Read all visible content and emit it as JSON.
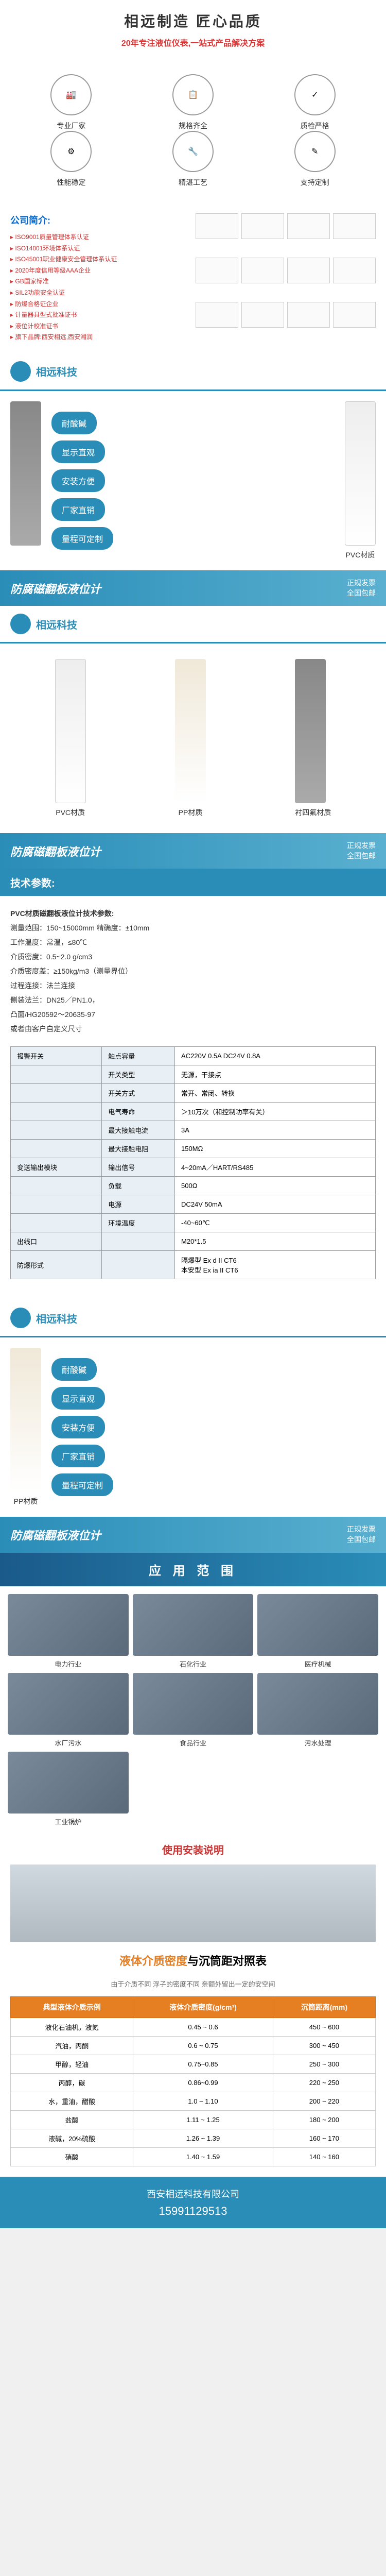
{
  "header": {
    "title": "相远制造  匠心品质",
    "subtitle": "20年专注液位仪表,一站式产品解决方案"
  },
  "features": [
    {
      "icon": "factory",
      "label": "专业厂家"
    },
    {
      "icon": "spec",
      "label": "规格齐全"
    },
    {
      "icon": "quality",
      "label": "质检严格"
    },
    {
      "icon": "stable",
      "label": "性能稳定"
    },
    {
      "icon": "craft",
      "label": "精湛工艺"
    },
    {
      "icon": "custom",
      "label": "支持定制"
    }
  ],
  "company": {
    "title": "公司简介:",
    "lines": [
      "ISO9001质量管理体系认证",
      "ISO14001环境体系认证",
      "ISO45001职业健康安全管理体系认证",
      "2020年度信用等级AAA企业",
      "GB国家标准",
      "SIL2功能安全认证",
      "防爆合格证企业",
      "计量器具型式批准证书",
      "液位计校准证书",
      "旗下品牌:西安相远,西安湘润"
    ]
  },
  "brand": "相远科技",
  "tags": [
    "耐酸碱",
    "显示直观",
    "安装方便",
    "厂家直销",
    "量程可定制"
  ],
  "materials": {
    "pvc": "PVC材质",
    "pp": "PP材质",
    "ptfe": "衬四氟材质"
  },
  "productTitle": "防腐磁翻板液位计",
  "invoice": {
    "l1": "正规发票",
    "l2": "全国包邮"
  },
  "tech": {
    "title": "技术参数:",
    "intro": "PVC材质磁翻板液位计技术参数:",
    "rows": [
      "测量范围：150~15000mm  精确度：±10mm",
      "工作温度：常温，≤80℃",
      "介质密度：0.5~2.0 g/cm3",
      "介质密度差：≥150kg/m3（测量界位）",
      "过程连接：法兰连接",
      "侧装法兰：DN25／PN1.0，",
      "凸面/HG20592～20635-97",
      "或者由客户自定义尺寸"
    ]
  },
  "specTable": [
    [
      "报警开关",
      "触点容量",
      "AC220V 0.5A  DC24V 0.8A"
    ],
    [
      "",
      "开关类型",
      "无源，干接点"
    ],
    [
      "",
      "开关方式",
      "常开、常闭、转换"
    ],
    [
      "",
      "电气寿命",
      "＞10万次（和控制功率有关）"
    ],
    [
      "",
      "最大接触电流",
      "3A"
    ],
    [
      "",
      "最大接触电阻",
      "150MΩ"
    ],
    [
      "变送输出模块",
      "输出信号",
      "4~20mA／HART/RS485"
    ],
    [
      "",
      "负载",
      "500Ω"
    ],
    [
      "",
      "电源",
      "DC24V  50mA"
    ],
    [
      "",
      "环境温度",
      "-40~60℃"
    ],
    [
      "出线口",
      "",
      "M20*1.5"
    ],
    [
      "防爆形式",
      "",
      "隔爆型 Ex d II CT6\n本安型 Ex ia II CT6"
    ]
  ],
  "appTitle": "应 用 范 围",
  "apps": [
    "电力行业",
    "石化行业",
    "医疗机械",
    "水厂污水",
    "食品行业",
    "污水处理",
    "工业锅炉"
  ],
  "installTitle": "使用安装说明",
  "density": {
    "title1": "液体介质密度",
    "title2": "与沉筒距对照表",
    "sub": "由于介质不同 浮子的密度不同 亲额外留出一定的安空间",
    "headers": [
      "典型液体介质示例",
      "液体介质密度(g/cm³)",
      "沉筒距离(mm)"
    ],
    "rows": [
      [
        "液化石油机，液氮",
        "0.45 ~ 0.6",
        "450 ~ 600"
      ],
      [
        "汽油，丙酮",
        "0.6 ~ 0.75",
        "300 ~ 450"
      ],
      [
        "甲醇，轻油",
        "0.75~0.85",
        "250 ~ 300"
      ],
      [
        "丙醇，碳",
        "0.86~0.99",
        "220 ~ 250"
      ],
      [
        "水，重油，醋酸",
        "1.0 ~ 1.10",
        "200 ~ 220"
      ],
      [
        "盐酸",
        "1.11 ~ 1.25",
        "180 ~ 200"
      ],
      [
        "液碱，20%硫酸",
        "1.26 ~ 1.39",
        "160 ~ 170"
      ],
      [
        "硝酸",
        "1.40 ~ 1.59",
        "140 ~ 160"
      ]
    ]
  },
  "footer": {
    "company": "西安相远科技有限公司",
    "phone": "15991129513"
  },
  "colors": {
    "primary": "#2a8db8",
    "accent": "#e67e22",
    "red": "#c33"
  }
}
